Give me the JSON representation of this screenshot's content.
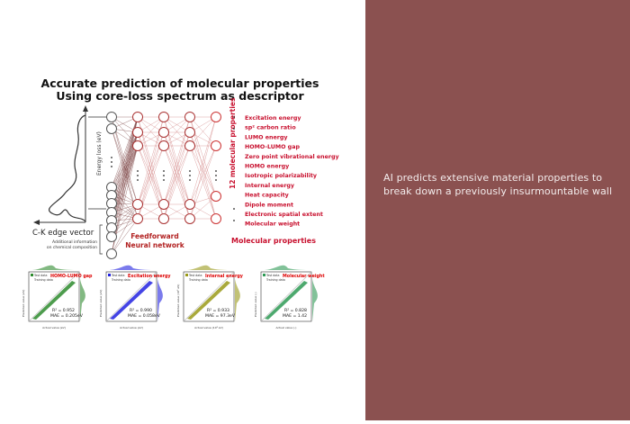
{
  "figure": {
    "title_line1": "Accurate prediction of molecular properties",
    "title_line2": "Using core-loss spectrum as descriptor",
    "y_axis_label": "Energy loss (eV)",
    "input_label": "C-K edge vector",
    "additional_info_line1": "Additional information",
    "additional_info_line2": "on chemical composition",
    "network_label_line1": "Feedforward",
    "network_label_line2": "Neural network",
    "side_label": "12 molecular properties",
    "output_label": "Molecular properties",
    "properties": [
      "Excitation energy",
      "sp² carbon ratio",
      "LUMO energy",
      "HOMO-LUMO gap",
      "Zero point vibrational energy",
      "HOMO energy",
      "Isotropic polarizability",
      "Internal energy",
      "Heat capacity",
      "Dipole moment",
      "Electronic spatial extent",
      "Molecular weight"
    ],
    "plots": [
      {
        "title": "HOMO-LUMO gap",
        "legend_test": "Test data",
        "legend_train": "Training data",
        "r2": "R² = 0.952",
        "mae": "MAE = 0.205eV",
        "ylabel": "Predicted value (eV)",
        "xlabel": "Actual value (eV)",
        "color": "#2e8b2e"
      },
      {
        "title": "Excitation energy",
        "legend_test": "Test data",
        "legend_train": "Training data",
        "r2": "R² = 0.990",
        "mae": "MAE = 0.058eV",
        "ylabel": "Predicted value (eV)",
        "xlabel": "Actual value (eV)",
        "color": "#2323e0"
      },
      {
        "title": "Internal energy",
        "legend_test": "Test data",
        "legend_train": "Training data",
        "r2": "R² = 0.933",
        "mae": "MAE = 97.3eV",
        "ylabel": "Predicted value (10³ eV)",
        "xlabel": "Actual value (10³ eV)",
        "color": "#9a9a1a"
      },
      {
        "title": "Molecular weight",
        "legend_test": "Test data",
        "legend_train": "Training data",
        "r2": "R² = 0.828",
        "mae": "MAE = 1.42",
        "ylabel": "Predicted value (-)",
        "xlabel": "Actual value (-)",
        "color": "#2e9a55"
      }
    ],
    "accent_color": "#c8102e"
  },
  "headline": {
    "line1": "AI predicts extensive material properties to",
    "line2": "break down a previously insurmountable wall"
  },
  "colors": {
    "panel_background": "#8b5150",
    "headline_text": "#f3ecec"
  }
}
